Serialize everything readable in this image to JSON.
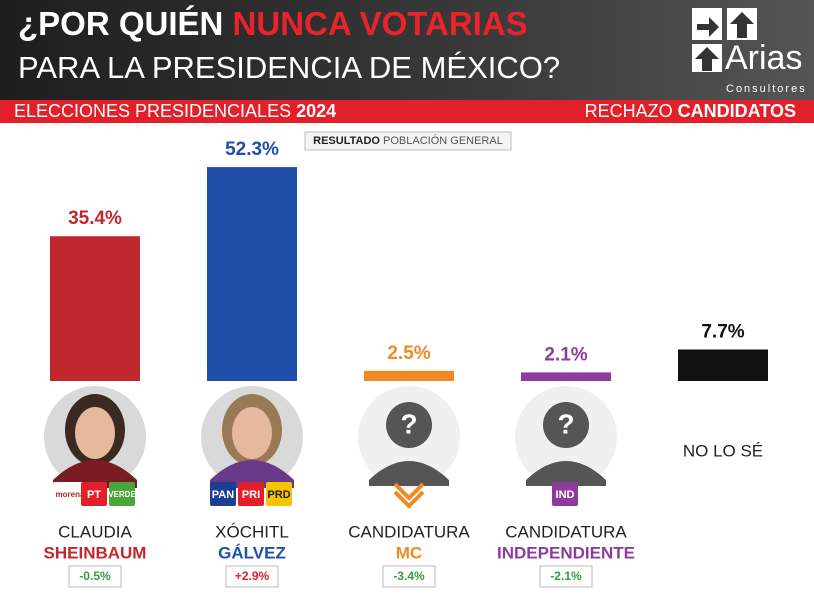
{
  "header": {
    "title_a": "¿POR QUIÉN",
    "title_b": "NUNCA VOTARIAS",
    "title_line2": "PARA LA PRESIDENCIA DE MÉXICO?",
    "logo_name": "Arias",
    "logo_sub": "Consultores"
  },
  "banner": {
    "left": "ELECCIONES PRESIDENCIALES",
    "left_bold": "2024",
    "right": "RECHAZO",
    "right_bold": "CANDIDATOS"
  },
  "chart_data": {
    "type": "bar",
    "subtitle_bold": "RESULTADO",
    "subtitle": "POBLACIÓN GENERAL",
    "first_names": [
      "CLAUDIA",
      "XÓCHITL",
      "CANDIDATURA",
      "CANDIDATURA",
      "NO LO SÉ"
    ],
    "last_names": [
      "SHEINBAUM",
      "GÁLVEZ",
      "MC",
      "INDEPENDIENTE",
      null
    ],
    "values": [
      35.4,
      52.3,
      2.5,
      2.1,
      7.7
    ],
    "value_labels": [
      "35.4%",
      "52.3%",
      "2.5%",
      "2.1%",
      "7.7%"
    ],
    "colors": [
      "#c0282d",
      "#1f4fa8",
      "#f08a24",
      "#8e3b9e",
      "#111111"
    ],
    "changes": [
      "-0.5%",
      "+2.9%",
      "-3.4%",
      "-2.1%",
      null
    ],
    "change_colors": [
      "#2e9e3a",
      "#e0202a",
      "#2e9e3a",
      "#2e9e3a",
      null
    ],
    "party_logos": [
      [
        "morena",
        "PT",
        "VERDE"
      ],
      [
        "PAN",
        "PRI",
        "PRD"
      ],
      [],
      [
        "IND"
      ],
      []
    ]
  }
}
